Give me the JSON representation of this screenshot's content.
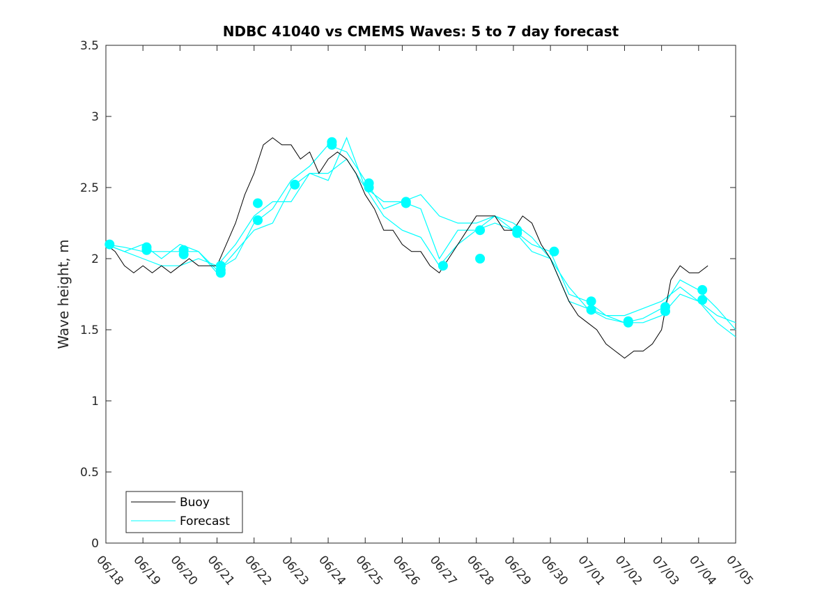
{
  "chart_data": {
    "type": "line",
    "title": "NDBC 41040 vs CMEMS Waves: 5 to 7 day forecast",
    "xlabel": "",
    "ylabel": "Wave height, m",
    "x_tick_labels": [
      "06/18",
      "06/19",
      "06/20",
      "06/21",
      "06/22",
      "06/23",
      "06/24",
      "06/25",
      "06/26",
      "06/27",
      "06/28",
      "06/29",
      "06/30",
      "07/01",
      "07/02",
      "07/03",
      "07/04",
      "07/05"
    ],
    "y_tick_labels": [
      "0",
      "0.5",
      "1",
      "1.5",
      "2",
      "2.5",
      "3",
      "3.5"
    ],
    "xlim_days": [
      0,
      17
    ],
    "ylim": [
      0,
      3.5
    ],
    "grid": false,
    "legend_position": "bottom-left",
    "colors": {
      "buoy": "#000000",
      "forecast": "#00ffff"
    },
    "series": [
      {
        "name": "Buoy",
        "points": [
          [
            0,
            2.1
          ],
          [
            0.25,
            2.05
          ],
          [
            0.5,
            1.95
          ],
          [
            0.75,
            1.9
          ],
          [
            1.0,
            1.95
          ],
          [
            1.25,
            1.9
          ],
          [
            1.5,
            1.95
          ],
          [
            1.75,
            1.9
          ],
          [
            2.0,
            1.95
          ],
          [
            2.25,
            2.0
          ],
          [
            2.5,
            1.95
          ],
          [
            2.75,
            1.95
          ],
          [
            3.0,
            1.95
          ],
          [
            3.25,
            2.1
          ],
          [
            3.5,
            2.25
          ],
          [
            3.75,
            2.45
          ],
          [
            4.0,
            2.6
          ],
          [
            4.25,
            2.8
          ],
          [
            4.5,
            2.85
          ],
          [
            4.75,
            2.8
          ],
          [
            5.0,
            2.8
          ],
          [
            5.25,
            2.7
          ],
          [
            5.5,
            2.75
          ],
          [
            5.75,
            2.6
          ],
          [
            6.0,
            2.7
          ],
          [
            6.25,
            2.75
          ],
          [
            6.5,
            2.7
          ],
          [
            6.75,
            2.6
          ],
          [
            7.0,
            2.45
          ],
          [
            7.25,
            2.35
          ],
          [
            7.5,
            2.2
          ],
          [
            7.75,
            2.2
          ],
          [
            8.0,
            2.1
          ],
          [
            8.25,
            2.05
          ],
          [
            8.5,
            2.05
          ],
          [
            8.75,
            1.95
          ],
          [
            9.0,
            1.9
          ],
          [
            9.25,
            2.0
          ],
          [
            9.5,
            2.1
          ],
          [
            9.75,
            2.2
          ],
          [
            10.0,
            2.3
          ],
          [
            10.25,
            2.3
          ],
          [
            10.5,
            2.3
          ],
          [
            10.75,
            2.2
          ],
          [
            11.0,
            2.2
          ],
          [
            11.25,
            2.3
          ],
          [
            11.5,
            2.25
          ],
          [
            11.75,
            2.1
          ],
          [
            12.0,
            2.0
          ],
          [
            12.25,
            1.85
          ],
          [
            12.5,
            1.7
          ],
          [
            12.75,
            1.6
          ],
          [
            13.0,
            1.55
          ],
          [
            13.25,
            1.5
          ],
          [
            13.5,
            1.4
          ],
          [
            13.75,
            1.35
          ],
          [
            14.0,
            1.3
          ],
          [
            14.25,
            1.35
          ],
          [
            14.5,
            1.35
          ],
          [
            14.75,
            1.4
          ],
          [
            15.0,
            1.5
          ],
          [
            15.25,
            1.85
          ],
          [
            15.5,
            1.95
          ],
          [
            15.75,
            1.9
          ],
          [
            16.0,
            1.9
          ],
          [
            16.25,
            1.95
          ]
        ]
      },
      {
        "name": "Forecast",
        "runs": [
          [
            [
              0,
              2.1
            ],
            [
              0.5,
              2.05
            ],
            [
              1.0,
              2.0
            ],
            [
              1.5,
              1.95
            ],
            [
              2.0,
              1.95
            ],
            [
              2.5,
              2.0
            ],
            [
              3.0,
              1.95
            ],
            [
              3.5,
              2.1
            ],
            [
              4.0,
              2.3
            ],
            [
              4.5,
              2.4
            ],
            [
              5.0,
              2.4
            ],
            [
              5.5,
              2.6
            ],
            [
              6.0,
              2.6
            ],
            [
              6.5,
              2.7
            ],
            [
              7.0,
              2.5
            ],
            [
              7.5,
              2.4
            ],
            [
              8.0,
              2.4
            ],
            [
              8.5,
              2.45
            ],
            [
              9.0,
              2.3
            ],
            [
              9.5,
              2.25
            ],
            [
              10.0,
              2.25
            ],
            [
              10.5,
              2.3
            ],
            [
              11.0,
              2.25
            ],
            [
              11.5,
              2.15
            ],
            [
              12.0,
              2.0
            ],
            [
              12.5,
              1.8
            ],
            [
              13.0,
              1.65
            ],
            [
              13.5,
              1.6
            ],
            [
              14.0,
              1.6
            ],
            [
              14.5,
              1.65
            ],
            [
              15.0,
              1.7
            ],
            [
              15.5,
              1.8
            ],
            [
              16.0,
              1.7
            ],
            [
              16.5,
              1.6
            ],
            [
              17.0,
              1.55
            ]
          ],
          [
            [
              0,
              2.1
            ],
            [
              0.5,
              2.08
            ],
            [
              1.0,
              2.05
            ],
            [
              1.5,
              2.05
            ],
            [
              2.0,
              2.05
            ],
            [
              2.5,
              2.05
            ],
            [
              3.0,
              1.92
            ],
            [
              3.5,
              2.0
            ],
            [
              4.0,
              2.25
            ],
            [
              4.5,
              2.35
            ],
            [
              5.0,
              2.55
            ],
            [
              5.5,
              2.65
            ],
            [
              6.0,
              2.8
            ],
            [
              6.5,
              2.75
            ],
            [
              7.0,
              2.55
            ],
            [
              7.5,
              2.35
            ],
            [
              8.0,
              2.4
            ],
            [
              8.5,
              2.35
            ],
            [
              9.0,
              2.0
            ],
            [
              9.5,
              2.2
            ],
            [
              10.0,
              2.2
            ],
            [
              10.5,
              2.25
            ],
            [
              11.0,
              2.2
            ],
            [
              11.5,
              2.1
            ],
            [
              12.0,
              2.05
            ],
            [
              12.5,
              1.75
            ],
            [
              13.0,
              1.7
            ],
            [
              13.5,
              1.6
            ],
            [
              14.0,
              1.55
            ],
            [
              14.5,
              1.58
            ],
            [
              15.0,
              1.65
            ],
            [
              15.5,
              1.85
            ],
            [
              16.0,
              1.78
            ],
            [
              16.5,
              1.65
            ],
            [
              17.0,
              1.5
            ]
          ],
          [
            [
              0,
              2.1
            ],
            [
              0.5,
              2.05
            ],
            [
              1.0,
              2.1
            ],
            [
              1.5,
              2.0
            ],
            [
              2.0,
              2.1
            ],
            [
              2.5,
              2.05
            ],
            [
              3.0,
              1.9
            ],
            [
              3.5,
              2.05
            ],
            [
              4.0,
              2.2
            ],
            [
              4.5,
              2.25
            ],
            [
              5.0,
              2.5
            ],
            [
              5.5,
              2.6
            ],
            [
              6.0,
              2.55
            ],
            [
              6.5,
              2.85
            ],
            [
              7.0,
              2.5
            ],
            [
              7.5,
              2.3
            ],
            [
              8.0,
              2.2
            ],
            [
              8.5,
              2.15
            ],
            [
              9.0,
              1.95
            ],
            [
              9.5,
              2.1
            ],
            [
              10.0,
              2.2
            ],
            [
              10.5,
              2.3
            ],
            [
              11.0,
              2.2
            ],
            [
              11.5,
              2.05
            ],
            [
              12.0,
              2.0
            ],
            [
              12.5,
              1.7
            ],
            [
              13.0,
              1.65
            ],
            [
              13.5,
              1.58
            ],
            [
              14.0,
              1.55
            ],
            [
              14.5,
              1.55
            ],
            [
              15.0,
              1.6
            ],
            [
              15.5,
              1.75
            ],
            [
              16.0,
              1.7
            ],
            [
              16.5,
              1.55
            ],
            [
              17.0,
              1.45
            ]
          ]
        ],
        "markers": [
          [
            0.1,
            2.1
          ],
          [
            1.1,
            2.08
          ],
          [
            1.1,
            2.06
          ],
          [
            2.1,
            2.06
          ],
          [
            2.1,
            2.03
          ],
          [
            3.1,
            1.95
          ],
          [
            3.1,
            1.92
          ],
          [
            3.1,
            1.9
          ],
          [
            4.1,
            2.39
          ],
          [
            4.1,
            2.27
          ],
          [
            5.1,
            2.52
          ],
          [
            6.1,
            2.82
          ],
          [
            6.1,
            2.8
          ],
          [
            7.1,
            2.53
          ],
          [
            7.1,
            2.5
          ],
          [
            8.1,
            2.4
          ],
          [
            8.1,
            2.39
          ],
          [
            9.1,
            1.95
          ],
          [
            10.1,
            2.2
          ],
          [
            10.1,
            2.0
          ],
          [
            11.1,
            2.2
          ],
          [
            11.1,
            2.18
          ],
          [
            12.1,
            2.05
          ],
          [
            13.1,
            1.7
          ],
          [
            13.1,
            1.64
          ],
          [
            14.1,
            1.56
          ],
          [
            14.1,
            1.55
          ],
          [
            15.1,
            1.66
          ],
          [
            15.1,
            1.63
          ],
          [
            16.1,
            1.78
          ],
          [
            16.1,
            1.71
          ]
        ]
      }
    ]
  }
}
